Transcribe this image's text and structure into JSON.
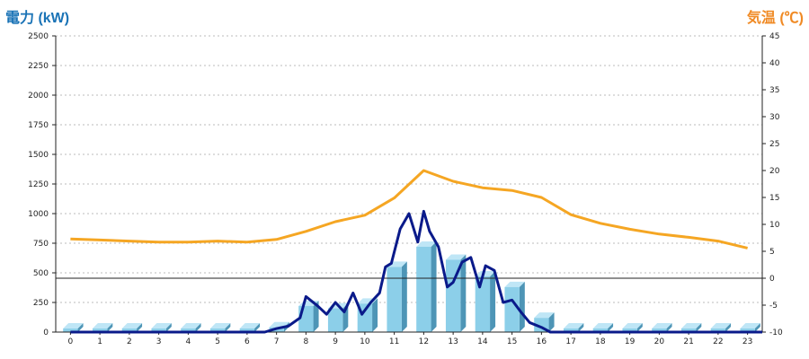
{
  "chart_data": {
    "type": "bar",
    "left_axis_label": "電力 (kW)",
    "right_axis_label": "気温 (℃)",
    "categories": [
      "0",
      "1",
      "2",
      "3",
      "4",
      "5",
      "6",
      "7",
      "8",
      "9",
      "10",
      "11",
      "12",
      "13",
      "14",
      "15",
      "16",
      "17",
      "18",
      "19",
      "20",
      "21",
      "22",
      "23"
    ],
    "y_left_ticks": [
      "0",
      "250",
      "500",
      "750",
      "1000",
      "1250",
      "1500",
      "1750",
      "2000",
      "2250",
      "2500"
    ],
    "y_right_ticks": [
      "-10",
      "-5",
      "0",
      "5",
      "10",
      "15",
      "20",
      "25",
      "30",
      "35",
      "40",
      "45"
    ],
    "ylim_left": [
      0,
      2500
    ],
    "ylim_right": [
      -10,
      45
    ],
    "grid": true,
    "series": [
      {
        "type": "bar",
        "axis": "left",
        "values": [
          30,
          30,
          30,
          30,
          30,
          30,
          30,
          40,
          220,
          200,
          240,
          550,
          720,
          610,
          470,
          380,
          120,
          30,
          30,
          30,
          30,
          30,
          30,
          30
        ]
      },
      {
        "type": "line",
        "axis": "right",
        "values": [
          7.3,
          7.1,
          6.9,
          6.7,
          6.7,
          6.9,
          6.7,
          7.2,
          8.7,
          10.5,
          11.7,
          14.9,
          20.0,
          18.0,
          16.8,
          16.3,
          15.0,
          11.8,
          10.2,
          9.1,
          8.2,
          7.6,
          6.9,
          5.6
        ]
      },
      {
        "type": "line",
        "axis": "left",
        "values": [
          [
            0,
            0
          ],
          [
            6.6,
            0
          ],
          [
            7.0,
            30
          ],
          [
            7.4,
            50
          ],
          [
            7.8,
            120
          ],
          [
            8.0,
            300
          ],
          [
            8.2,
            260
          ],
          [
            8.4,
            220
          ],
          [
            8.7,
            150
          ],
          [
            9.0,
            250
          ],
          [
            9.3,
            170
          ],
          [
            9.6,
            330
          ],
          [
            9.9,
            150
          ],
          [
            10.2,
            250
          ],
          [
            10.5,
            330
          ],
          [
            10.7,
            550
          ],
          [
            10.9,
            580
          ],
          [
            11.2,
            870
          ],
          [
            11.5,
            1000
          ],
          [
            11.8,
            760
          ],
          [
            12.0,
            1020
          ],
          [
            12.2,
            850
          ],
          [
            12.5,
            720
          ],
          [
            12.8,
            380
          ],
          [
            13.0,
            420
          ],
          [
            13.3,
            590
          ],
          [
            13.6,
            630
          ],
          [
            13.9,
            380
          ],
          [
            14.1,
            560
          ],
          [
            14.4,
            520
          ],
          [
            14.7,
            250
          ],
          [
            15.0,
            270
          ],
          [
            15.3,
            170
          ],
          [
            15.6,
            80
          ],
          [
            16.0,
            40
          ],
          [
            16.3,
            0
          ],
          [
            23.5,
            0
          ]
        ]
      }
    ]
  },
  "colors": {
    "left_title": "#1a73b6",
    "right_title": "#f08a24",
    "bar_front": "#8ccfe9",
    "bar_side": "#4e95b6",
    "bar_top": "#bfe6f6",
    "temperature_line": "#f5a623",
    "power_line": "#0a1a8a",
    "grid": "#bbbbbb"
  }
}
